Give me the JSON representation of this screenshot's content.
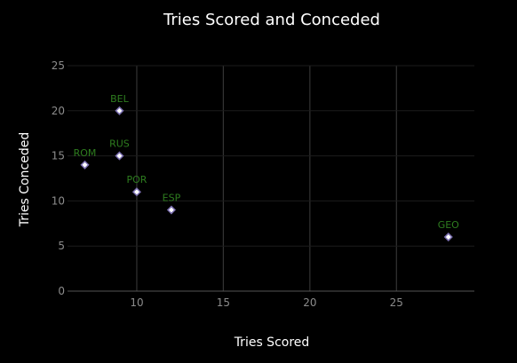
{
  "chart_data": {
    "type": "scatter",
    "title": "Tries Scored and Conceded",
    "xlabel": "Tries Scored",
    "ylabel": "Tries Conceded",
    "xlim": [
      6,
      29.5
    ],
    "ylim": [
      0,
      25
    ],
    "xticks": [
      10,
      15,
      20,
      25
    ],
    "yticks": [
      0,
      5,
      10,
      15,
      20,
      25
    ],
    "grid": true,
    "legend": "none",
    "colors": {
      "background": "#000000",
      "marker_fill": "#ffffff",
      "marker_edge": "#7b6fb0",
      "label": "#2e7d1f",
      "grid_major": "#333333",
      "grid_minor": "#1c1c1c",
      "axis": "#555555"
    },
    "points": [
      {
        "label": "BEL",
        "x": 9,
        "y": 20
      },
      {
        "label": "RUS",
        "x": 9,
        "y": 15
      },
      {
        "label": "ROM",
        "x": 7,
        "y": 14
      },
      {
        "label": "POR",
        "x": 10,
        "y": 11
      },
      {
        "label": "ESP",
        "x": 12,
        "y": 9
      },
      {
        "label": "GEO",
        "x": 28,
        "y": 6
      }
    ]
  }
}
